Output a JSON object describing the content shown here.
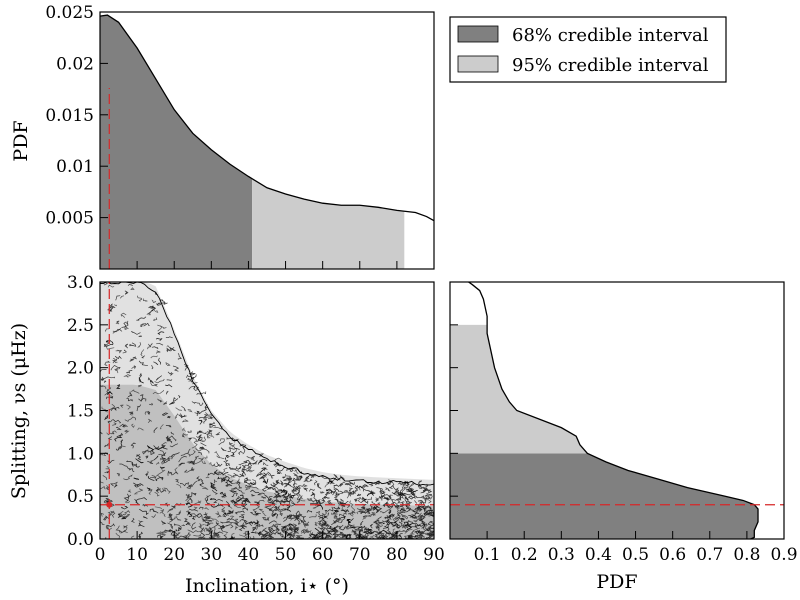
{
  "chart_data": [
    {
      "type": "area",
      "panel": "top-left",
      "xlabel": "",
      "ylabel": "PDF",
      "xlim": [
        0,
        90
      ],
      "ylim": [
        0,
        0.025
      ],
      "y_ticks": [
        "0.005",
        "0.01",
        "0.015",
        "0.02",
        "0.025"
      ],
      "y_tick_values": [
        0.005,
        0.01,
        0.015,
        0.02,
        0.025
      ],
      "x": [
        0,
        2,
        5,
        10,
        15,
        20,
        25,
        30,
        35,
        40,
        45,
        50,
        55,
        60,
        65,
        70,
        75,
        80,
        85,
        88,
        90
      ],
      "y": [
        0.0246,
        0.0247,
        0.024,
        0.0215,
        0.0185,
        0.0155,
        0.0132,
        0.0116,
        0.0102,
        0.009,
        0.0079,
        0.0073,
        0.0068,
        0.0064,
        0.0062,
        0.0062,
        0.006,
        0.0057,
        0.0055,
        0.0051,
        0.0047
      ],
      "interval_68": [
        0,
        41
      ],
      "interval_95": [
        41,
        82
      ],
      "marker": 2.5
    },
    {
      "type": "scatter",
      "panel": "bottom-left",
      "xlabel": "Inclination, i⋆ (°)",
      "ylabel": "Splitting, νs (μHz)",
      "xlim": [
        0,
        90
      ],
      "ylim": [
        0,
        3.0
      ],
      "x_ticks": [
        "0",
        "10",
        "20",
        "30",
        "40",
        "50",
        "60",
        "70",
        "80",
        "90"
      ],
      "x_tick_values": [
        0,
        10,
        20,
        30,
        40,
        50,
        60,
        70,
        80,
        90
      ],
      "y_ticks": [
        "0.0",
        "0.5",
        "1.0",
        "1.5",
        "2.0",
        "2.5",
        "3.0"
      ],
      "y_tick_values": [
        0,
        0.5,
        1.0,
        1.5,
        2.0,
        2.5,
        3.0
      ],
      "density_ridge": {
        "x": [
          0,
          5,
          10,
          15,
          20,
          25,
          30,
          35,
          40,
          45,
          50,
          55,
          60,
          65,
          70,
          75,
          80,
          85,
          90
        ],
        "y": [
          3.0,
          3.0,
          3.0,
          2.9,
          2.4,
          1.85,
          1.45,
          1.2,
          1.05,
          0.93,
          0.85,
          0.78,
          0.73,
          0.7,
          0.68,
          0.67,
          0.66,
          0.65,
          0.64
        ]
      },
      "marker": [
        2.5,
        0.4
      ]
    },
    {
      "type": "area",
      "panel": "bottom-right",
      "orientation": "horizontal",
      "xlabel": "PDF",
      "ylabel": "",
      "xlim": [
        0,
        0.9
      ],
      "ylim": [
        0,
        3.0
      ],
      "x_ticks": [
        "0.1",
        "0.2",
        "0.3",
        "0.4",
        "0.5",
        "0.6",
        "0.7",
        "0.8",
        "0.9"
      ],
      "x_tick_values": [
        0.1,
        0.2,
        0.3,
        0.4,
        0.5,
        0.6,
        0.7,
        0.8,
        0.9
      ],
      "y": [
        0.0,
        0.02,
        0.1,
        0.2,
        0.3,
        0.35,
        0.4,
        0.45,
        0.5,
        0.6,
        0.7,
        0.8,
        0.9,
        1.0,
        1.1,
        1.2,
        1.3,
        1.5,
        1.6,
        1.75,
        2.0,
        2.2,
        2.4,
        2.6,
        2.8,
        2.9,
        2.97,
        3.0
      ],
      "pdf": [
        0.81,
        0.82,
        0.82,
        0.83,
        0.83,
        0.83,
        0.82,
        0.79,
        0.74,
        0.64,
        0.56,
        0.48,
        0.42,
        0.37,
        0.35,
        0.34,
        0.3,
        0.18,
        0.16,
        0.14,
        0.12,
        0.11,
        0.1,
        0.1,
        0.09,
        0.08,
        0.06,
        0.05
      ],
      "interval_68": [
        0,
        1.0
      ],
      "interval_95": [
        1.0,
        2.5
      ],
      "marker": 0.4
    }
  ],
  "legend": {
    "placement": "top-right",
    "entries": [
      {
        "label": "68% credible interval",
        "color": "#808080"
      },
      {
        "label": "95% credible interval",
        "color": "#cccccc"
      }
    ]
  },
  "colors": {
    "interval_68": "#808080",
    "interval_95": "#cccccc",
    "marker": "#d62728",
    "line": "#000000"
  }
}
